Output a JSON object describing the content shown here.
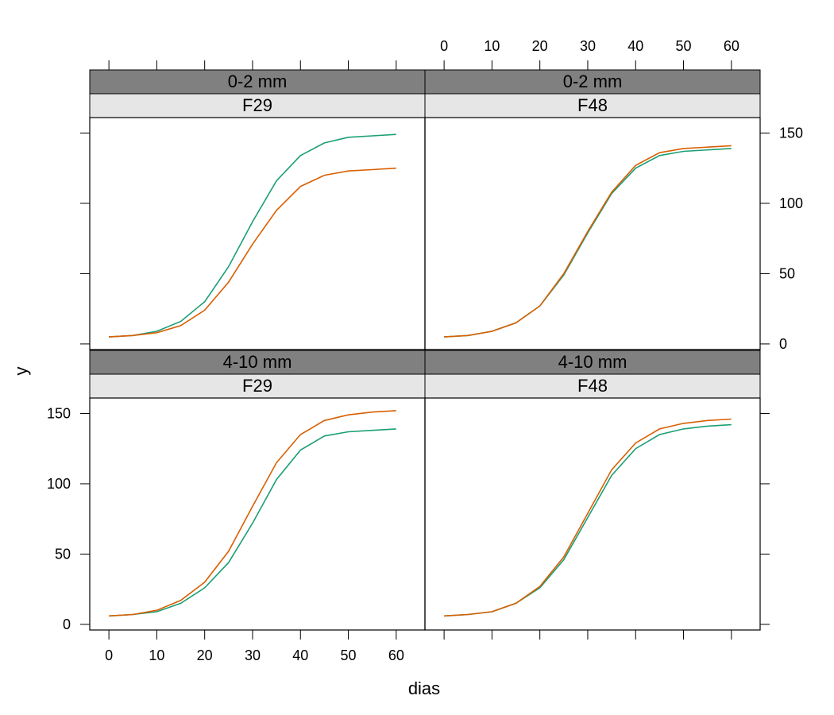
{
  "chart_data": {
    "type": "line",
    "layout": "trellis 2x2",
    "xlabel": "dias",
    "ylabel": "y",
    "x_ticks": [
      0,
      10,
      20,
      30,
      40,
      50,
      60
    ],
    "y_ticks": [
      0,
      50,
      100,
      150
    ],
    "xlim": [
      -4,
      66
    ],
    "ylim": [
      -4,
      161
    ],
    "colors": {
      "series_1": "#1b9e77",
      "series_2": "#d95f02"
    },
    "strip_colors": {
      "outer": "#808080",
      "inner": "#e6e6e6"
    },
    "panels": [
      {
        "strip_outer": "0-2 mm",
        "strip_inner": "F29",
        "series": [
          {
            "color": "#1b9e77",
            "x": [
              0,
              5,
              10,
              15,
              20,
              25,
              30,
              35,
              40,
              45,
              50,
              55,
              60
            ],
            "y": [
              5,
              6,
              9,
              16,
              30,
              55,
              87,
              116,
              134,
              143,
              147,
              148,
              149
            ]
          },
          {
            "color": "#d95f02",
            "x": [
              0,
              5,
              10,
              15,
              20,
              25,
              30,
              35,
              40,
              45,
              50,
              55,
              60
            ],
            "y": [
              5,
              6,
              8,
              13,
              24,
              44,
              71,
              95,
              112,
              120,
              123,
              124,
              125
            ]
          }
        ]
      },
      {
        "strip_outer": "0-2 mm",
        "strip_inner": "F48",
        "series": [
          {
            "color": "#1b9e77",
            "x": [
              0,
              5,
              10,
              15,
              20,
              25,
              30,
              35,
              40,
              45,
              50,
              55,
              60
            ],
            "y": [
              5,
              6,
              9,
              15,
              27,
              49,
              79,
              107,
              125,
              134,
              137,
              138,
              139
            ]
          },
          {
            "color": "#d95f02",
            "x": [
              0,
              5,
              10,
              15,
              20,
              25,
              30,
              35,
              40,
              45,
              50,
              55,
              60
            ],
            "y": [
              5,
              6,
              9,
              15,
              27,
              50,
              80,
              108,
              127,
              136,
              139,
              140,
              141
            ]
          }
        ]
      },
      {
        "strip_outer": "4-10 mm",
        "strip_inner": "F29",
        "series": [
          {
            "color": "#1b9e77",
            "x": [
              0,
              5,
              10,
              15,
              20,
              25,
              30,
              35,
              40,
              45,
              50,
              55,
              60
            ],
            "y": [
              6,
              7,
              9,
              15,
              26,
              44,
              72,
              103,
              124,
              134,
              137,
              138,
              139
            ]
          },
          {
            "color": "#d95f02",
            "x": [
              0,
              5,
              10,
              15,
              20,
              25,
              30,
              35,
              40,
              45,
              50,
              55,
              60
            ],
            "y": [
              6,
              7,
              10,
              17,
              30,
              52,
              84,
              115,
              135,
              145,
              149,
              151,
              152
            ]
          }
        ]
      },
      {
        "strip_outer": "4-10 mm",
        "strip_inner": "F48",
        "series": [
          {
            "color": "#1b9e77",
            "x": [
              0,
              5,
              10,
              15,
              20,
              25,
              30,
              35,
              40,
              45,
              50,
              55,
              60
            ],
            "y": [
              6,
              7,
              9,
              15,
              26,
              46,
              76,
              106,
              125,
              135,
              139,
              141,
              142
            ]
          },
          {
            "color": "#d95f02",
            "x": [
              0,
              5,
              10,
              15,
              20,
              25,
              30,
              35,
              40,
              45,
              50,
              55,
              60
            ],
            "y": [
              6,
              7,
              9,
              15,
              27,
              48,
              79,
              110,
              129,
              139,
              143,
              145,
              146
            ]
          }
        ]
      }
    ]
  }
}
